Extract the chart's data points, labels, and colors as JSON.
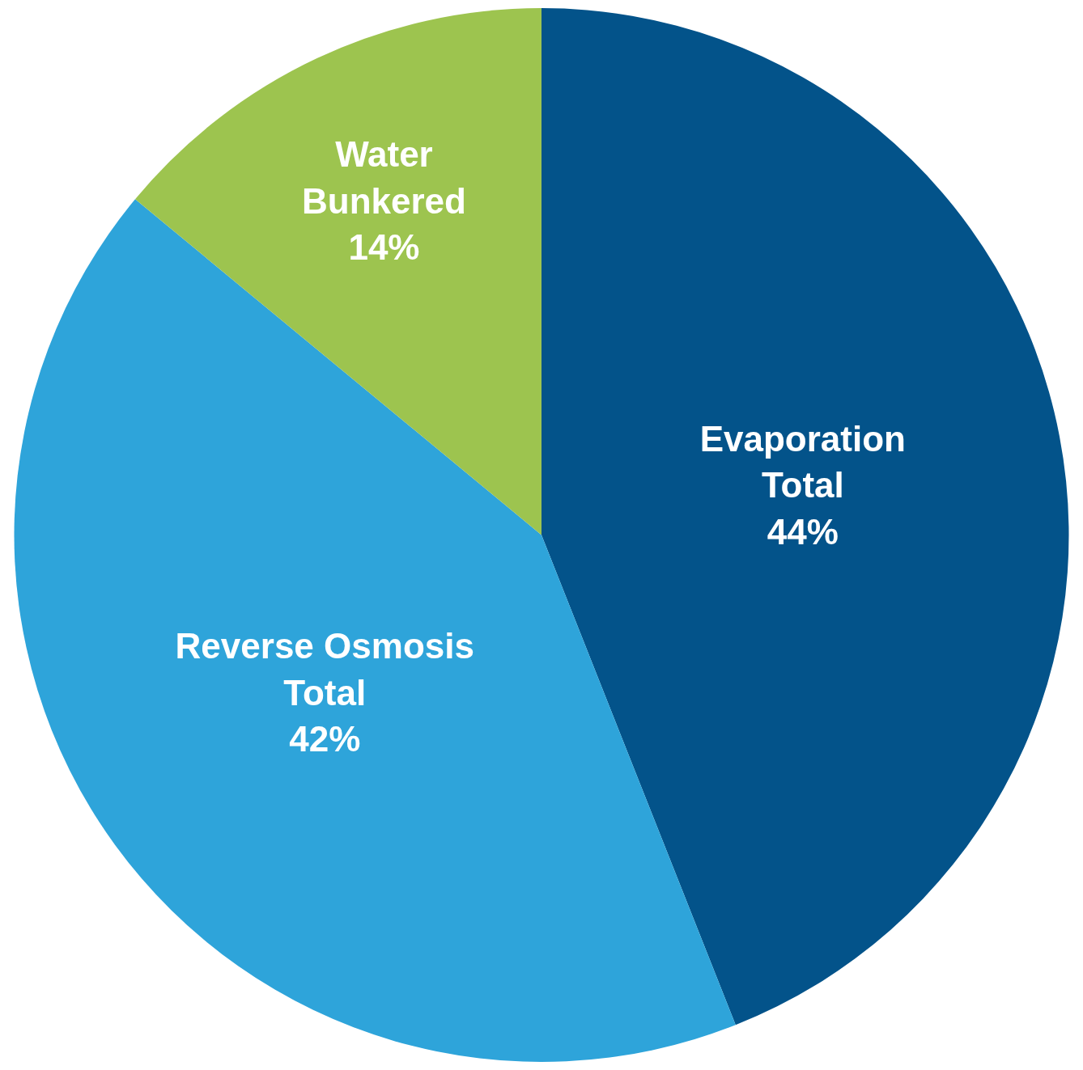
{
  "chart_data": {
    "type": "pie",
    "categories": [
      "Evaporation Total",
      "Reverse Osmosis Total",
      "Water Bunkered"
    ],
    "values": [
      44,
      42,
      14
    ],
    "value_labels": [
      "44%",
      "42%",
      "14%"
    ],
    "colors": [
      "#03538a",
      "#2ea4da",
      "#9dc44f"
    ],
    "legend": false
  }
}
